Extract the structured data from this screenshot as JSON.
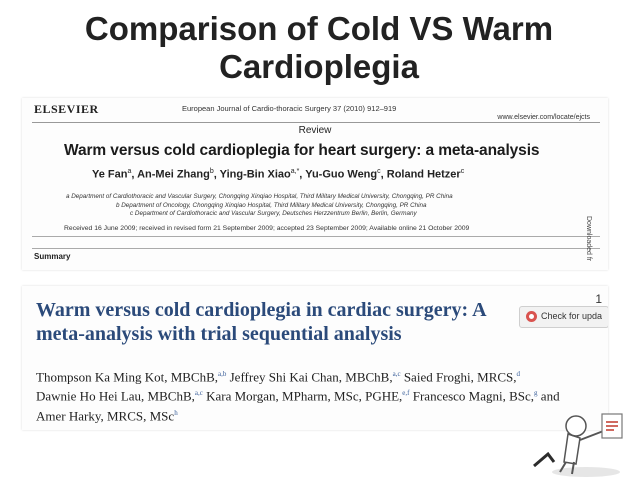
{
  "slide": {
    "title_line1": "Comparison of Cold VS Warm",
    "title_line2": "Cardioplegia"
  },
  "article1": {
    "publisher": "ELSEVIER",
    "journal": "European Journal of Cardio-thoracic Surgery 37 (2010) 912–919",
    "url": "www.elsevier.com/locate/ejcts",
    "section": "Review",
    "title": "Warm versus cold cardioplegia for heart surgery: a meta-analysis",
    "authors": [
      {
        "name": "Ye Fan",
        "sup": "a"
      },
      {
        "name": "An-Mei Zhang",
        "sup": "b"
      },
      {
        "name": "Ying-Bin Xiao",
        "sup": "a,*"
      },
      {
        "name": "Yu-Guo Weng",
        "sup": "c"
      },
      {
        "name": "Roland Hetzer",
        "sup": "c"
      }
    ],
    "affiliations": [
      "a Department of Cardiothoracic and Vascular Surgery, Chongqing Xinqiao Hospital, Third Military Medical University, Chongqing, PR China",
      "b Department of Oncology, Chongqing Xinqiao Hospital, Third Military Medical University, Chongqing, PR China",
      "c Department of Cardiothoracic and Vascular Surgery, Deutsches Herzzentrum Berlin, Berlin, Germany"
    ],
    "received": "Received 16 June 2009; received in revised form 21 September 2009; accepted 23 September 2009; Available online 21 October 2009",
    "summary_label": "Summary",
    "side_text": "Downloaded fr"
  },
  "article2": {
    "title_line1": "Warm versus cold cardioplegia in cardiac surgery: A",
    "title_line2": "meta-analysis with trial sequential analysis",
    "page_number": "1",
    "update_button": "Check for upda",
    "authors_lines": [
      [
        {
          "name": "Thompson Ka Ming Kot, MBChB,",
          "sup": "a,b"
        },
        {
          "name": " Jeffrey Shi Kai Chan, MBChB,",
          "sup": "a,c"
        },
        {
          "name": " Saied Froghi, MRCS,",
          "sup": "d"
        }
      ],
      [
        {
          "name": "Dawnie Ho Hei Lau, MBChB,",
          "sup": "a,c"
        },
        {
          "name": " Kara Morgan, MPharm, MSc, PGHE,",
          "sup": "e,f"
        },
        {
          "name": " Francesco Magni, BSc,",
          "sup": "g"
        },
        {
          "name": " and",
          "sup": ""
        }
      ],
      [
        {
          "name": "Amer Harky, MRCS, MSc",
          "sup": "h"
        }
      ]
    ]
  },
  "colors": {
    "title_text": "#222222",
    "article2_title": "#2b4a7a",
    "superscript": "#3a5f9a"
  }
}
